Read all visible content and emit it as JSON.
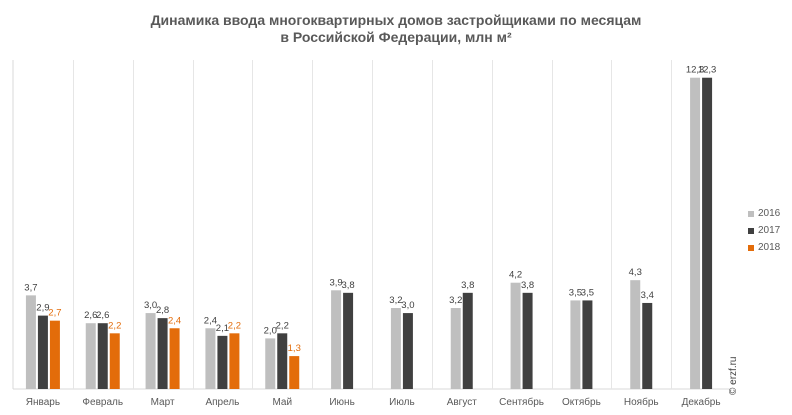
{
  "chart_data": {
    "type": "bar",
    "title_line1": "Динамика ввода многоквартирных домов застройщиками по месяцам",
    "title_line2": "в Российской Федерации, млн м²",
    "categories": [
      "Январь",
      "Февраль",
      "Март",
      "Апрель",
      "Май",
      "Июнь",
      "Июль",
      "Август",
      "Сентябрь",
      "Октябрь",
      "Ноябрь",
      "Декабрь"
    ],
    "series": [
      {
        "name": "2016",
        "color": "#bfbfbf",
        "label_color": "#404040",
        "values": [
          3.7,
          2.6,
          3.0,
          2.4,
          2.0,
          3.9,
          3.2,
          3.2,
          4.2,
          3.5,
          4.3,
          12.3
        ],
        "labels": [
          "3,7",
          "2,6",
          "3,0",
          "2,4",
          "2,0",
          "3,9",
          "3,2",
          "3,2",
          "4,2",
          "3,5",
          "4,3",
          "12,3"
        ]
      },
      {
        "name": "2017",
        "color": "#404040",
        "label_color": "#404040",
        "values": [
          2.9,
          2.6,
          2.8,
          2.1,
          2.2,
          3.8,
          3.0,
          3.8,
          3.8,
          3.5,
          3.4,
          12.3
        ],
        "labels": [
          "2,9",
          "2,6",
          "2,8",
          "2,1",
          "2,2",
          "3,8",
          "3,0",
          "3,8",
          "3,8",
          "3,5",
          "3,4",
          "12,3"
        ]
      },
      {
        "name": "2018",
        "color": "#e36c0a",
        "label_color": "#e36c0a",
        "values": [
          2.7,
          2.2,
          2.4,
          2.2,
          1.3,
          null,
          null,
          null,
          null,
          null,
          null,
          null
        ],
        "labels": [
          "2,7",
          "2,2",
          "2,4",
          "2,2",
          "1,3",
          null,
          null,
          null,
          null,
          null,
          null,
          null
        ]
      }
    ],
    "ylim": [
      0,
      13
    ],
    "grid": "vertical category separators",
    "legend_placement": "right"
  },
  "watermark": "© erzf.ru"
}
